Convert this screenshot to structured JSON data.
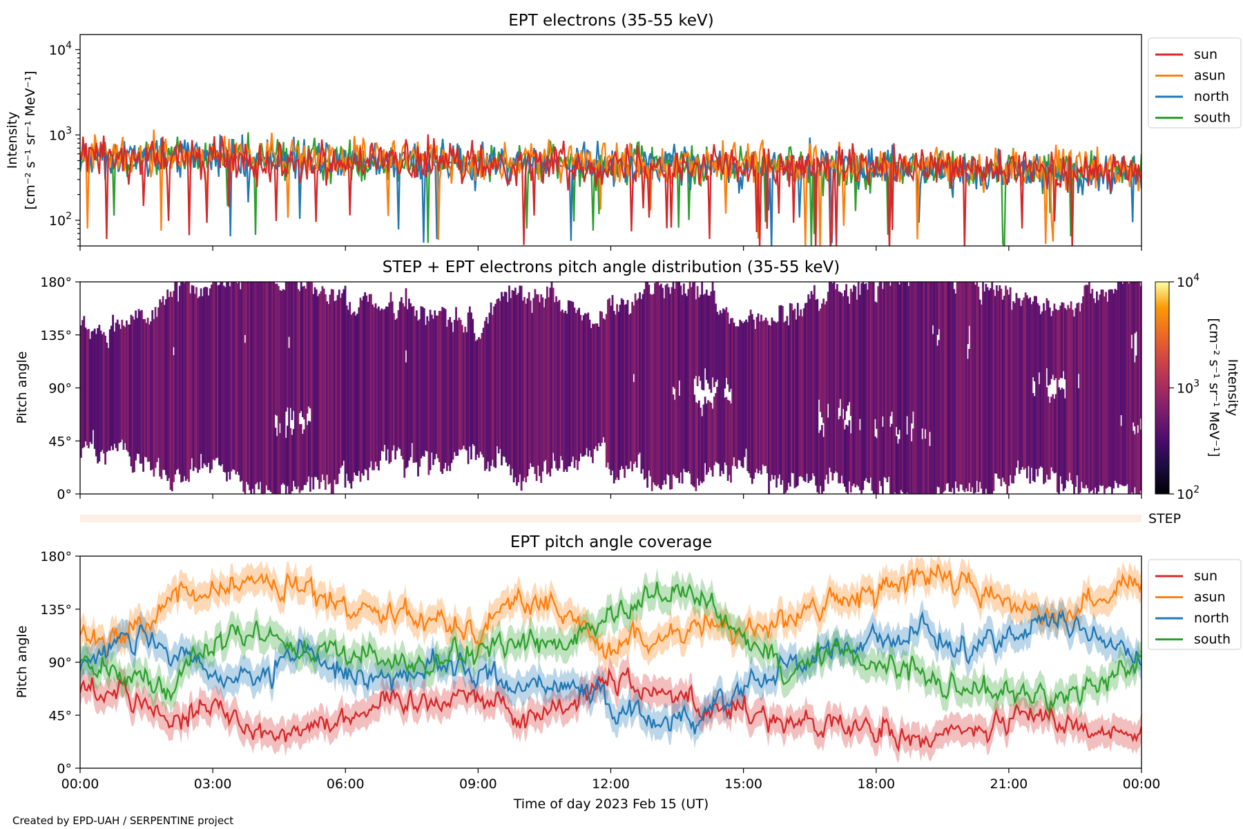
{
  "footer": "Created by EPD-UAH / SERPENTINE project",
  "colors": {
    "sun": "#d62728",
    "asun": "#ff7f0e",
    "north": "#1f77b4",
    "south": "#2ca02c"
  },
  "panel1": {
    "title": "EPT electrons (35-55 keV)",
    "ylabel_line1": "Intensity",
    "ylabel_line2": "[cm⁻² s⁻¹ sr⁻¹ MeV⁻¹]",
    "yticks": [
      {
        "base": "10",
        "exp": "4",
        "value": 10000
      },
      {
        "base": "10",
        "exp": "3",
        "value": 1000
      },
      {
        "base": "10",
        "exp": "2",
        "value": 100
      }
    ],
    "legend": [
      "sun",
      "asun",
      "north",
      "south"
    ]
  },
  "panel2": {
    "title": "STEP + EPT electrons pitch angle distribution (35-55 keV)",
    "ylabel": "Pitch angle",
    "yticks": [
      "180°",
      "135°",
      "90°",
      "45°",
      "0°"
    ],
    "colorbar": {
      "label": "Intensity",
      "units": "[cm⁻² s⁻¹ sr⁻¹ MeV⁻¹]",
      "ticks": [
        {
          "base": "10",
          "exp": "4",
          "value": 10000
        },
        {
          "base": "10",
          "exp": "3",
          "value": 1000
        },
        {
          "base": "10",
          "exp": "2",
          "value": 100
        }
      ]
    }
  },
  "step_strip": {
    "label": "STEP"
  },
  "panel3": {
    "title": "EPT pitch angle coverage",
    "ylabel": "Pitch angle",
    "yticks": [
      "180°",
      "135°",
      "90°",
      "45°",
      "0°"
    ],
    "xlabel": "Time of day 2023 Feb 15 (UT)",
    "xticks": [
      "00:00",
      "03:00",
      "06:00",
      "09:00",
      "12:00",
      "15:00",
      "18:00",
      "21:00",
      "00:00"
    ],
    "legend": [
      "sun",
      "asun",
      "north",
      "south"
    ]
  },
  "chart_data": [
    {
      "type": "line",
      "title": "EPT electrons (35-55 keV)",
      "ylabel": "Intensity [cm⁻² s⁻¹ sr⁻¹ MeV⁻¹]",
      "yscale": "log",
      "ylim": [
        50,
        15000
      ],
      "x_unit": "hours UT, 2023 Feb 15",
      "xlim": [
        0,
        24
      ],
      "legend_position": "outside-right-top",
      "series": [
        {
          "name": "sun",
          "x": [
            0,
            2,
            4,
            6,
            8,
            10,
            12,
            14,
            16,
            18,
            20,
            22,
            24
          ],
          "values": [
            520,
            540,
            500,
            480,
            470,
            460,
            450,
            430,
            420,
            400,
            390,
            380,
            370
          ]
        },
        {
          "name": "asun",
          "x": [
            0,
            2,
            4,
            6,
            8,
            10,
            12,
            14,
            16,
            18,
            20,
            22,
            24
          ],
          "values": [
            560,
            580,
            560,
            530,
            520,
            500,
            490,
            470,
            450,
            430,
            420,
            410,
            400
          ]
        },
        {
          "name": "north",
          "x": [
            0,
            2,
            4,
            6,
            8,
            10,
            12,
            14,
            16,
            18,
            20,
            22,
            24
          ],
          "values": [
            540,
            560,
            520,
            500,
            490,
            480,
            460,
            440,
            430,
            410,
            380,
            370,
            360
          ]
        },
        {
          "name": "south",
          "x": [
            0,
            2,
            4,
            6,
            8,
            10,
            12,
            14,
            16,
            18,
            20,
            22,
            24
          ],
          "values": [
            530,
            550,
            520,
            500,
            490,
            470,
            460,
            450,
            430,
            410,
            400,
            390,
            380
          ]
        }
      ]
    },
    {
      "type": "heatmap",
      "title": "STEP + EPT electrons pitch angle distribution (35-55 keV)",
      "ylabel": "Pitch angle",
      "ylim": [
        0,
        180
      ],
      "xlim": [
        0,
        24
      ],
      "color_scale": "log",
      "color_range": [
        100,
        10000
      ],
      "typical_intensity": 400
    },
    {
      "type": "line",
      "title": "EPT pitch angle coverage",
      "xlabel": "Time of day 2023 Feb 15 (UT)",
      "ylabel": "Pitch angle",
      "ylim": [
        0,
        180
      ],
      "xlim": [
        0,
        24
      ],
      "legend_position": "outside-right-top",
      "series": [
        {
          "name": "sun",
          "x": [
            0,
            1,
            2,
            3,
            4,
            5,
            6,
            7,
            8,
            9,
            10,
            11,
            12,
            13,
            14,
            15,
            16,
            17,
            18,
            19,
            20,
            21,
            22,
            23,
            24
          ],
          "values": [
            65,
            70,
            40,
            55,
            30,
            35,
            45,
            55,
            60,
            65,
            40,
            55,
            80,
            65,
            55,
            50,
            40,
            35,
            30,
            25,
            30,
            40,
            45,
            30,
            35
          ]
        },
        {
          "name": "asun",
          "x": [
            0,
            1,
            2,
            3,
            4,
            5,
            6,
            7,
            8,
            9,
            10,
            11,
            12,
            13,
            14,
            15,
            16,
            17,
            18,
            19,
            20,
            21,
            22,
            23,
            24
          ],
          "values": [
            115,
            110,
            140,
            150,
            160,
            150,
            135,
            140,
            125,
            120,
            145,
            130,
            100,
            110,
            120,
            115,
            130,
            140,
            150,
            165,
            155,
            140,
            135,
            140,
            160
          ]
        },
        {
          "name": "north",
          "x": [
            0,
            1,
            2,
            3,
            4,
            5,
            6,
            7,
            8,
            9,
            10,
            11,
            12,
            13,
            14,
            15,
            16,
            17,
            18,
            19,
            20,
            21,
            22,
            23,
            24
          ],
          "values": [
            90,
            115,
            95,
            80,
            70,
            100,
            80,
            75,
            90,
            80,
            70,
            75,
            50,
            40,
            45,
            70,
            90,
            100,
            110,
            115,
            100,
            115,
            125,
            115,
            85
          ]
        },
        {
          "name": "south",
          "x": [
            0,
            1,
            2,
            3,
            4,
            5,
            6,
            7,
            8,
            9,
            10,
            11,
            12,
            13,
            14,
            15,
            16,
            17,
            18,
            19,
            20,
            21,
            22,
            23,
            24
          ],
          "values": [
            90,
            80,
            70,
            105,
            120,
            95,
            100,
            90,
            85,
            100,
            110,
            105,
            125,
            145,
            150,
            110,
            85,
            100,
            90,
            80,
            70,
            65,
            55,
            70,
            95
          ]
        }
      ]
    }
  ]
}
